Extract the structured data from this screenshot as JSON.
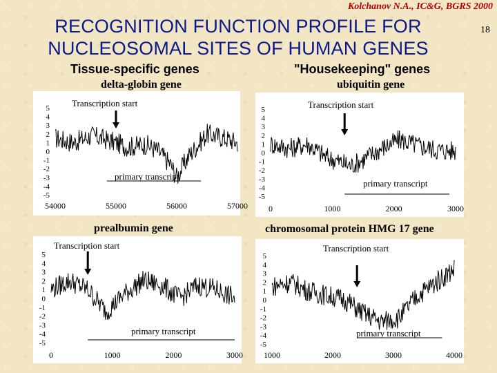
{
  "header": {
    "author": "Kolchanov N.A., IC&G, BGRS 2000",
    "page_number": "18",
    "title_line1": "RECOGNITION FUNCTION PROFILE FOR",
    "title_line2": "NUCLEOSOMAL SITES OF HUMAN GENES"
  },
  "groups": {
    "left": "Tissue-specific genes",
    "right": "\"Housekeeping\" genes"
  },
  "colors": {
    "title": "#0a1a8c",
    "author": "#b30000",
    "background": "#f3e6c4",
    "plot_line": "#000000"
  },
  "chart_data": [
    {
      "type": "line",
      "gene": "delta-globin gene",
      "annotation_top": "Transcription start",
      "annotation_bottom": "primary transcript",
      "xlim": [
        54000,
        57000
      ],
      "xticks": [
        54000,
        55000,
        56000,
        57000
      ],
      "ylim": [
        -5,
        5
      ],
      "yticks": [
        5,
        4,
        3,
        2,
        1,
        0,
        -1,
        -2,
        -3,
        -4,
        -5
      ],
      "transcription_start_x": 55000,
      "primary_transcript": [
        54850,
        56400
      ],
      "series": [
        {
          "x": [
            54000,
            54300,
            54600,
            54900,
            55200,
            55500,
            55700,
            55900,
            56000,
            56200,
            56500,
            56800,
            57000
          ],
          "values": [
            1.5,
            1.0,
            1.8,
            1.2,
            0.5,
            0.8,
            0.0,
            -1.5,
            -3.0,
            -0.5,
            2.0,
            1.5,
            1.0
          ]
        }
      ]
    },
    {
      "type": "line",
      "gene": "ubiquitin gene",
      "annotation_top": "Transcription start",
      "annotation_bottom": "primary transcript",
      "xlim": [
        0,
        3000
      ],
      "xticks": [
        0,
        1000,
        2000,
        3000
      ],
      "ylim": [
        -5,
        5
      ],
      "yticks": [
        5,
        4,
        3,
        2,
        1,
        0,
        -1,
        -2,
        -3,
        -4,
        -5
      ],
      "transcription_start_x": 1200,
      "primary_transcript": [
        1200,
        2900
      ],
      "series": [
        {
          "x": [
            0,
            300,
            600,
            900,
            1100,
            1300,
            1500,
            1800,
            2100,
            2400,
            2700,
            3000
          ],
          "values": [
            1.0,
            0.5,
            1.0,
            -0.5,
            -1.0,
            -1.5,
            -0.8,
            0.5,
            1.5,
            0.8,
            0.3,
            0.2
          ]
        }
      ]
    },
    {
      "type": "line",
      "gene": "prealbumin gene",
      "annotation_top": "Transcription start",
      "annotation_bottom": "primary transcript",
      "xlim": [
        0,
        3000
      ],
      "xticks": [
        0,
        1000,
        2000,
        3000
      ],
      "ylim": [
        -5,
        5
      ],
      "yticks": [
        5,
        4,
        3,
        2,
        1,
        0,
        -1,
        -2,
        -3,
        -4,
        -5
      ],
      "transcription_start_x": 600,
      "primary_transcript": [
        600,
        3000
      ],
      "series": [
        {
          "x": [
            0,
            300,
            600,
            900,
            1200,
            1500,
            1800,
            2100,
            2400,
            2700,
            3000
          ],
          "values": [
            1.0,
            2.0,
            1.0,
            -1.5,
            0.5,
            2.0,
            1.5,
            0.0,
            1.5,
            1.0,
            0.0
          ]
        }
      ]
    },
    {
      "type": "line",
      "gene": "chromosomal protein HMG 17 gene",
      "annotation_top": "Transcription start",
      "annotation_bottom": "primary transcript",
      "xlim": [
        1000,
        4000
      ],
      "xticks": [
        1000,
        2000,
        3000,
        4000
      ],
      "ylim": [
        -5,
        5
      ],
      "yticks": [
        5,
        4,
        3,
        2,
        1,
        0,
        -1,
        -2,
        -3,
        -4,
        -5
      ],
      "transcription_start_x": 2400,
      "primary_transcript": [
        2400,
        3800
      ],
      "series": [
        {
          "x": [
            1000,
            1300,
            1600,
            1900,
            2200,
            2500,
            2800,
            3100,
            3400,
            3700,
            4000
          ],
          "values": [
            1.5,
            2.0,
            1.0,
            0.5,
            0.0,
            -1.5,
            -2.5,
            -2.0,
            0.5,
            2.0,
            3.5
          ]
        }
      ]
    }
  ]
}
